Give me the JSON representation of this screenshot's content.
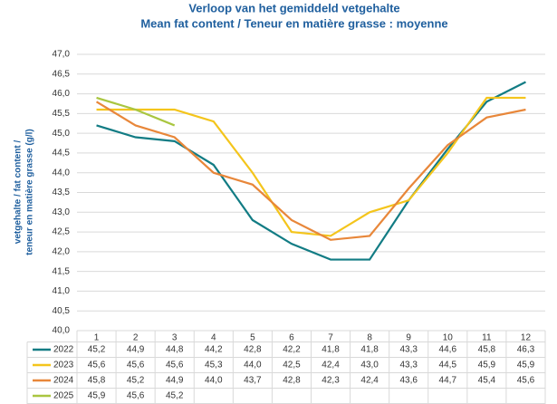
{
  "chart_data": {
    "type": "line",
    "title": [
      "Verloop van het gemiddeld vetgehalte",
      "Mean fat content / Teneur en matière grasse : moyenne"
    ],
    "y_label": [
      "vetgehalte / fat content /",
      "teneur en matière grasse (g/l)"
    ],
    "categories": [
      "1",
      "2",
      "3",
      "4",
      "5",
      "6",
      "7",
      "8",
      "9",
      "10",
      "11",
      "12"
    ],
    "ylim": [
      40,
      47
    ],
    "yticks": [
      {
        "value": 40,
        "label": "40,0"
      },
      {
        "value": 40.5,
        "label": "40,5"
      },
      {
        "value": 41,
        "label": "41,0"
      },
      {
        "value": 41.5,
        "label": "41,5"
      },
      {
        "value": 42,
        "label": "42,0"
      },
      {
        "value": 42.5,
        "label": "42,5"
      },
      {
        "value": 43,
        "label": "43,0"
      },
      {
        "value": 43.5,
        "label": "43,5"
      },
      {
        "value": 44,
        "label": "44,0"
      },
      {
        "value": 44.5,
        "label": "44,5"
      },
      {
        "value": 45,
        "label": "45,0"
      },
      {
        "value": 45.5,
        "label": "45,5"
      },
      {
        "value": 46,
        "label": "46,0"
      },
      {
        "value": 46.5,
        "label": "46,5"
      },
      {
        "value": 47,
        "label": "47,0"
      }
    ],
    "grid": true,
    "series": [
      {
        "name": "2022",
        "color": "#127c84",
        "values": [
          45.2,
          44.9,
          44.8,
          44.2,
          42.8,
          42.2,
          41.8,
          41.8,
          43.3,
          44.6,
          45.8,
          46.3
        ],
        "value_labels": [
          "45,2",
          "44,9",
          "44,8",
          "44,2",
          "42,8",
          "42,2",
          "41,8",
          "41,8",
          "43,3",
          "44,6",
          "45,8",
          "46,3"
        ]
      },
      {
        "name": "2023",
        "color": "#f4c51c",
        "values": [
          45.6,
          45.6,
          45.6,
          45.3,
          44.0,
          42.5,
          42.4,
          43.0,
          43.3,
          44.5,
          45.9,
          45.9
        ],
        "value_labels": [
          "45,6",
          "45,6",
          "45,6",
          "45,3",
          "44,0",
          "42,5",
          "42,4",
          "43,0",
          "43,3",
          "44,5",
          "45,9",
          "45,9"
        ]
      },
      {
        "name": "2024",
        "color": "#e8873a",
        "values": [
          45.8,
          45.2,
          44.9,
          44.0,
          43.7,
          42.8,
          42.3,
          42.4,
          43.6,
          44.7,
          45.4,
          45.6
        ],
        "value_labels": [
          "45,8",
          "45,2",
          "44,9",
          "44,0",
          "43,7",
          "42,8",
          "42,3",
          "42,4",
          "43,6",
          "44,7",
          "45,4",
          "45,6"
        ]
      },
      {
        "name": "2025",
        "color": "#a9c640",
        "values": [
          45.9,
          45.6,
          45.2,
          null,
          null,
          null,
          null,
          null,
          null,
          null,
          null,
          null
        ],
        "value_labels": [
          "45,9",
          "45,6",
          "45,2",
          null,
          null,
          null,
          null,
          null,
          null,
          null,
          null,
          null
        ]
      }
    ]
  }
}
